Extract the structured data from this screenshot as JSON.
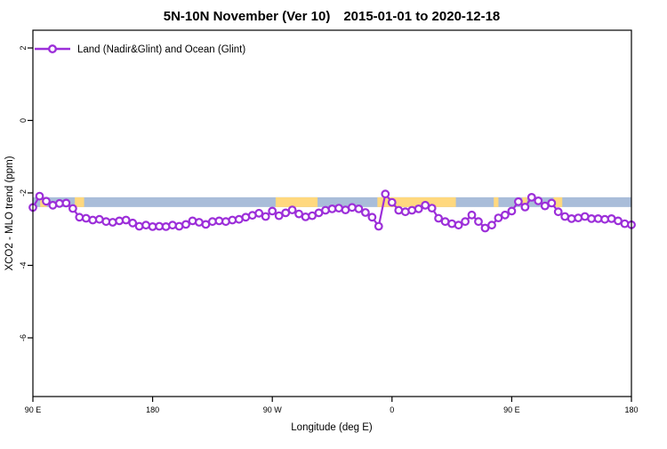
{
  "chart_data": {
    "type": "line",
    "title": "5N-10N November (Ver 10)  2015-01-01 to 2020-12-18",
    "xlabel": "Longitude (deg E)",
    "ylabel": "XCO2 - MLO trend (ppm)",
    "grid": false,
    "legend_position": "top-left",
    "xlim": [
      90,
      540
    ],
    "ylim": [
      -7.62,
      2.49
    ],
    "x_ticks": [
      {
        "v": 90,
        "label": "90 E"
      },
      {
        "v": 180,
        "label": "180"
      },
      {
        "v": 270,
        "label": "90 W"
      },
      {
        "v": 360,
        "label": "0"
      },
      {
        "v": 450,
        "label": "90 E"
      },
      {
        "v": 540,
        "label": "180"
      }
    ],
    "y_ticks": [
      {
        "v": 2,
        "label": "2"
      },
      {
        "v": 0,
        "label": "0"
      },
      {
        "v": -2,
        "label": "-2"
      },
      {
        "v": -4,
        "label": "-4"
      },
      {
        "v": -6,
        "label": "-6"
      }
    ],
    "legend": [
      {
        "label": "Land (Nadir&Glint) and Ocean (Glint)",
        "color": "#9C2FD9",
        "marker": "open-circle"
      }
    ],
    "series": [
      {
        "name": "Land (Nadir&Glint) and Ocean (Glint)",
        "color": "#9C2FD9",
        "marker": "open-circle",
        "x": [
          90,
          95,
          100,
          105,
          110,
          115,
          120,
          125,
          130,
          135,
          140,
          145,
          150,
          155,
          160,
          165,
          170,
          175,
          180,
          185,
          190,
          195,
          200,
          205,
          210,
          215,
          220,
          225,
          230,
          235,
          240,
          245,
          250,
          255,
          260,
          265,
          270,
          275,
          280,
          285,
          290,
          295,
          300,
          305,
          310,
          315,
          320,
          325,
          330,
          335,
          340,
          345,
          350,
          355,
          360,
          365,
          370,
          375,
          380,
          385,
          390,
          395,
          400,
          405,
          410,
          415,
          420,
          425,
          430,
          435,
          440,
          445,
          450,
          455,
          460,
          465,
          470,
          475,
          480,
          485,
          490,
          495,
          500,
          505,
          510,
          515,
          520,
          525,
          530,
          535,
          540
        ],
        "y": [
          -2.4,
          -2.09,
          -2.23,
          -2.34,
          -2.29,
          -2.28,
          -2.43,
          -2.67,
          -2.7,
          -2.75,
          -2.73,
          -2.79,
          -2.81,
          -2.77,
          -2.75,
          -2.83,
          -2.92,
          -2.89,
          -2.93,
          -2.92,
          -2.93,
          -2.89,
          -2.92,
          -2.87,
          -2.77,
          -2.81,
          -2.87,
          -2.79,
          -2.77,
          -2.79,
          -2.75,
          -2.73,
          -2.67,
          -2.62,
          -2.56,
          -2.65,
          -2.5,
          -2.63,
          -2.55,
          -2.47,
          -2.58,
          -2.66,
          -2.63,
          -2.55,
          -2.48,
          -2.44,
          -2.42,
          -2.47,
          -2.4,
          -2.44,
          -2.54,
          -2.67,
          -2.92,
          -2.03,
          -2.26,
          -2.48,
          -2.52,
          -2.48,
          -2.44,
          -2.34,
          -2.42,
          -2.7,
          -2.79,
          -2.85,
          -2.89,
          -2.79,
          -2.61,
          -2.79,
          -2.97,
          -2.89,
          -2.69,
          -2.61,
          -2.5,
          -2.24,
          -2.39,
          -2.12,
          -2.22,
          -2.36,
          -2.28,
          -2.52,
          -2.65,
          -2.71,
          -2.69,
          -2.65,
          -2.71,
          -2.71,
          -2.73,
          -2.71,
          -2.77,
          -2.85,
          -2.88
        ]
      }
    ],
    "background_band": {
      "description": "5N-10N latitude map strip: ocean (blue) with land patches (tan)",
      "y_top": -2.12,
      "y_bottom": -2.39,
      "ocean_color": "#A9BDD9",
      "land_color": "#FFD87E",
      "land_segments_lon": [
        [
          95.5,
          100.5
        ],
        [
          121.5,
          128.5
        ],
        [
          272.5,
          304
        ],
        [
          349,
          408
        ],
        [
          436.5,
          440
        ],
        [
          458,
          461.5
        ],
        [
          481.5,
          488
        ]
      ]
    }
  }
}
